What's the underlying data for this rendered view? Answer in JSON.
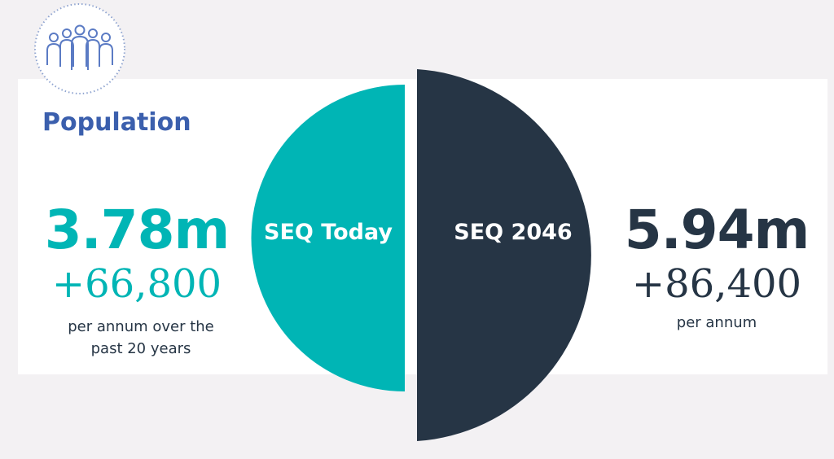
{
  "title": "Population",
  "today": {
    "label": "SEQ Today",
    "population": "3.78m",
    "growth": "+66,800",
    "note": "per annum over the past 20 years"
  },
  "future": {
    "label": "SEQ 2046",
    "population": "5.94m",
    "growth": "+86,400",
    "note": "per annum"
  }
}
